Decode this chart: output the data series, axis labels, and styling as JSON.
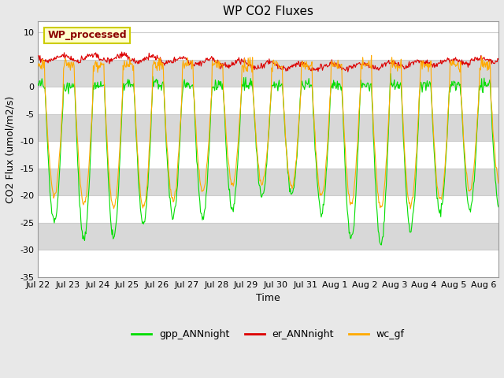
{
  "title": "WP CO2 Fluxes",
  "xlabel": "Time",
  "ylabel": "CO2 Flux (umol/m2/s)",
  "ylim": [
    -35,
    12
  ],
  "yticks": [
    -35,
    -30,
    -25,
    -20,
    -15,
    -10,
    -5,
    0,
    5,
    10
  ],
  "background_color": "#e8e8e8",
  "plot_bg_color": "#ffffff",
  "band_colors": [
    "#ffffff",
    "#d8d8d8"
  ],
  "grid_color": "#cccccc",
  "legend_label": "WP_processed",
  "legend_text_color": "#8B0000",
  "legend_box_color": "#ffffcc",
  "legend_box_edge_color": "#cccc00",
  "line_colors": {
    "gpp": "#00dd00",
    "er": "#dd0000",
    "wc": "#ffaa00"
  },
  "line_labels": [
    "gpp_ANNnight",
    "er_ANNnight",
    "wc_gf"
  ],
  "n_days": 15.5,
  "points_per_day": 48,
  "day_labels": [
    "Jul 22",
    "Jul 23",
    "Jul 24",
    "Jul 25",
    "Jul 26",
    "Jul 27",
    "Jul 28",
    "Jul 29",
    "Jul 30",
    "Jul 31",
    "Aug 1",
    "Aug 2",
    "Aug 3",
    "Aug 4",
    "Aug 5",
    "Aug 6"
  ],
  "tick_fontsize": 8,
  "label_fontsize": 9,
  "title_fontsize": 11
}
